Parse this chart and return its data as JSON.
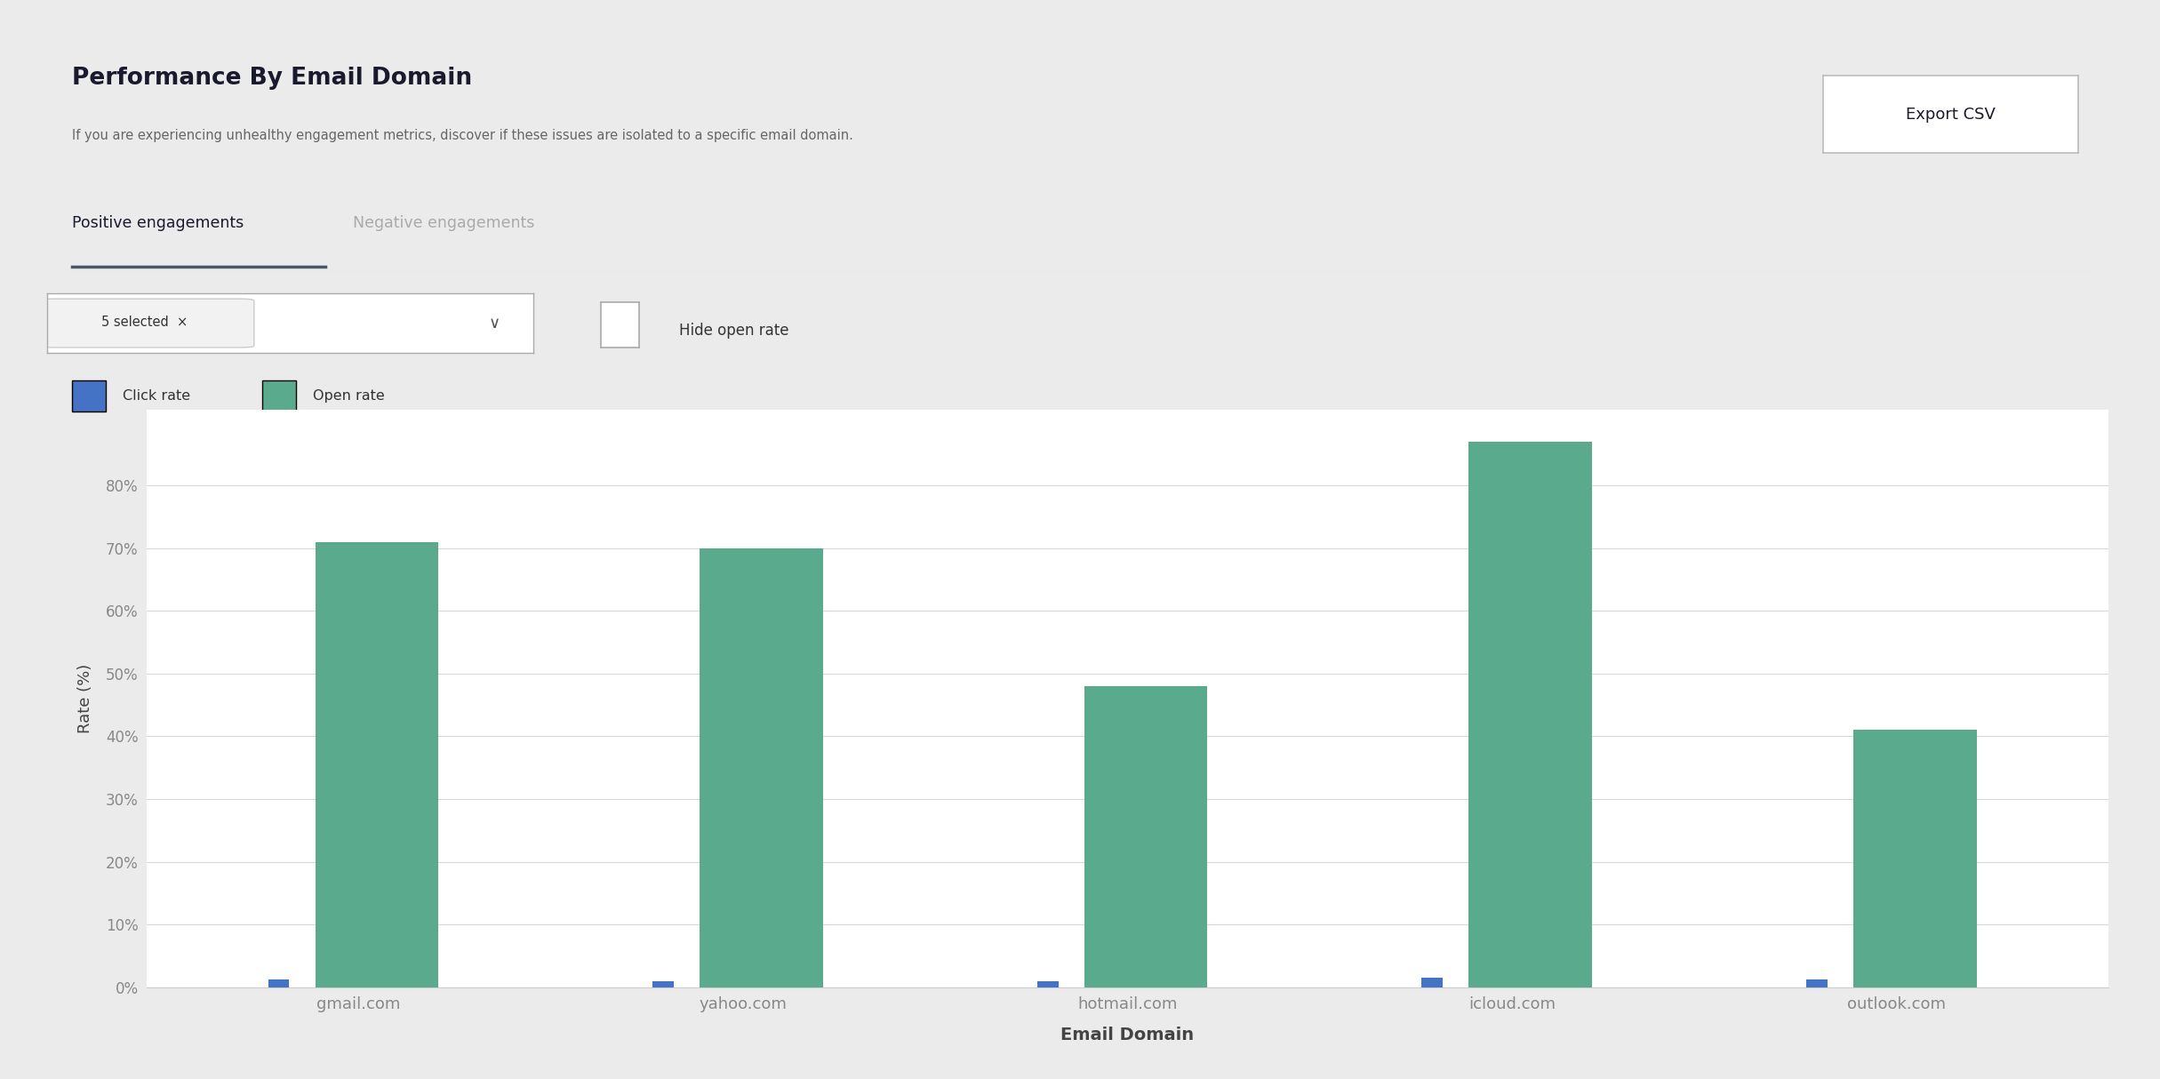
{
  "title": "Performance By Email Domain",
  "subtitle": "If you are experiencing unhealthy engagement metrics, discover if these issues are isolated to a specific email domain.",
  "tab_active": "Positive engagements",
  "tab_inactive": "Negative engagements",
  "checkbox_label": "Hide open rate",
  "legend_click": "Click rate",
  "legend_open": "Open rate",
  "categories": [
    "gmail.com",
    "yahoo.com",
    "hotmail.com",
    "icloud.com",
    "outlook.com"
  ],
  "click_rates": [
    1.2,
    1.0,
    1.0,
    1.5,
    1.2
  ],
  "open_rates": [
    71,
    70,
    48,
    87,
    41
  ],
  "ylabel": "Rate (%)",
  "xlabel": "Email Domain",
  "ytick_labels": [
    "0%",
    "10%",
    "20%",
    "30%",
    "40%",
    "50%",
    "60%",
    "70%",
    "80%"
  ],
  "ytick_vals": [
    0,
    10,
    20,
    30,
    40,
    50,
    60,
    70,
    80
  ],
  "click_color": "#4472c4",
  "open_color": "#5aab8e",
  "grid_color": "#d8d8d8",
  "title_color": "#1a1a2e",
  "subtitle_color": "#666666",
  "axis_label_color": "#444444",
  "tick_color": "#888888",
  "export_btn_text": "Export CSV",
  "tab_underline_color": "#4a5568",
  "card_border": "#dddddd",
  "fig_bg": "#ebebeb",
  "card_bg": "#ffffff"
}
